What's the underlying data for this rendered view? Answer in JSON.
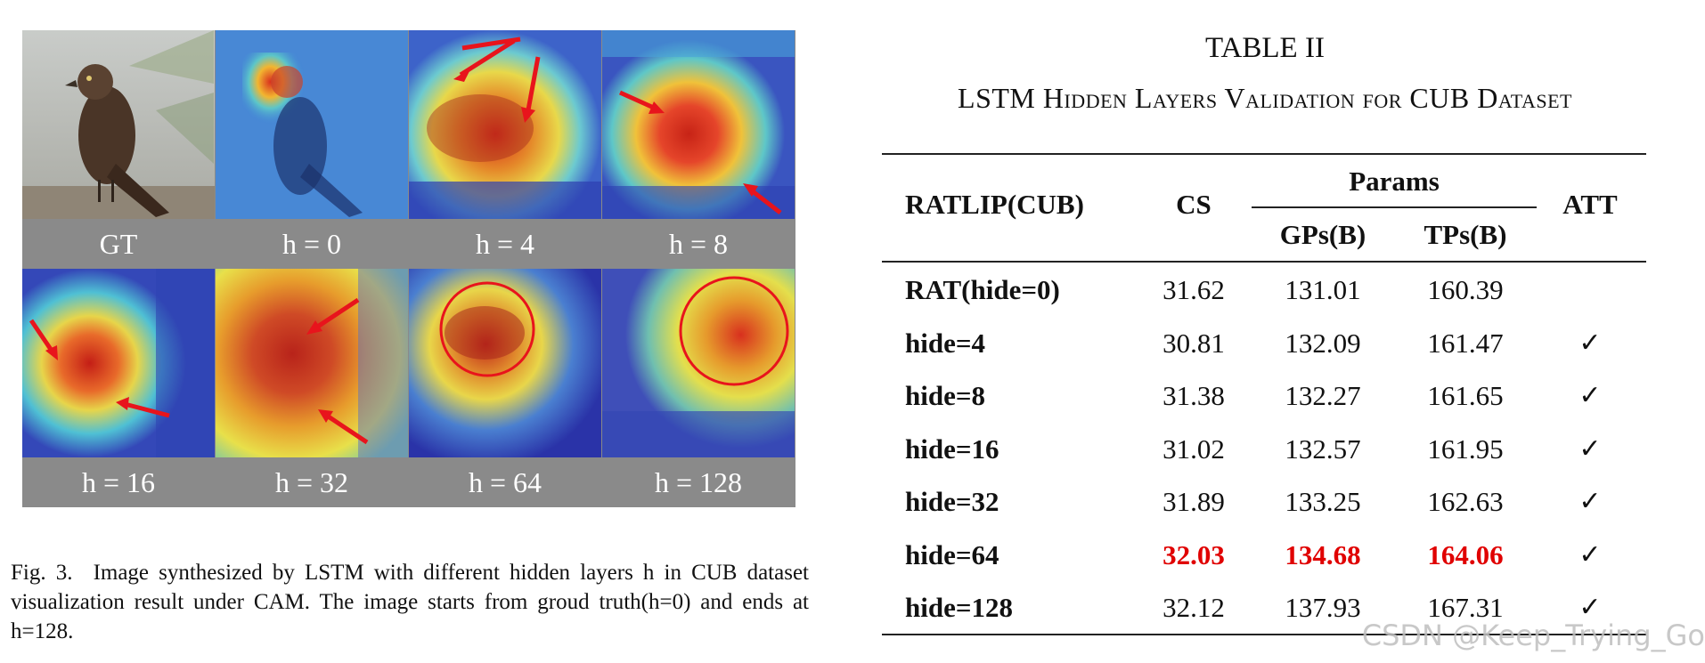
{
  "figure": {
    "panels": [
      {
        "label": "GT",
        "style": "photo"
      },
      {
        "label": "h = 0",
        "style": "cam0"
      },
      {
        "label": "h = 4",
        "style": "cam4",
        "marks": [
          "arrow",
          "arrow"
        ]
      },
      {
        "label": "h = 8",
        "style": "cam8",
        "marks": [
          "arrow",
          "arrow"
        ]
      },
      {
        "label": "h = 16",
        "style": "cam16",
        "marks": [
          "arrow",
          "arrow"
        ]
      },
      {
        "label": "h = 32",
        "style": "cam32",
        "marks": [
          "arrow",
          "arrow"
        ]
      },
      {
        "label": "h = 64",
        "style": "cam64",
        "marks": [
          "circle"
        ]
      },
      {
        "label": "h = 128",
        "style": "cam128",
        "marks": [
          "circle"
        ]
      }
    ],
    "caption_number": "Fig. 3.",
    "caption_text": "Image synthesized by LSTM with different hidden layers h in CUB dataset visualization result under CAM. The image starts from groud truth(h=0) and ends at h=128.",
    "colors": {
      "arrow": "#e8141c",
      "panel_background": "#8a8a8a"
    }
  },
  "table": {
    "label": "TABLE II",
    "name": "LSTM Hidden Layers Validation for CUB Dataset",
    "headers": {
      "model": "RATLIP(CUB)",
      "cs": "CS",
      "params": "Params",
      "gps": "GPs(B)",
      "tps": "TPs(B)",
      "att": "ATT"
    },
    "rows": [
      {
        "model": "RAT(hide=0)",
        "cs": "31.62",
        "gps": "131.01",
        "tps": "160.39",
        "att": "",
        "highlight": false
      },
      {
        "model": "hide=4",
        "cs": "30.81",
        "gps": "132.09",
        "tps": "161.47",
        "att": "✓",
        "highlight": false
      },
      {
        "model": "hide=8",
        "cs": "31.38",
        "gps": "132.27",
        "tps": "161.65",
        "att": "✓",
        "highlight": false
      },
      {
        "model": "hide=16",
        "cs": "31.02",
        "gps": "132.57",
        "tps": "161.95",
        "att": "✓",
        "highlight": false
      },
      {
        "model": "hide=32",
        "cs": "31.89",
        "gps": "133.25",
        "tps": "162.63",
        "att": "✓",
        "highlight": false
      },
      {
        "model": "hide=64",
        "cs": "32.03",
        "gps": "134.68",
        "tps": "164.06",
        "att": "✓",
        "highlight": true
      },
      {
        "model": "hide=128",
        "cs": "32.12",
        "gps": "137.93",
        "tps": "167.31",
        "att": "✓",
        "highlight": false
      }
    ],
    "colors": {
      "highlight": "#e00000"
    }
  },
  "watermark": "CSDN @Keep_Trying_Go"
}
